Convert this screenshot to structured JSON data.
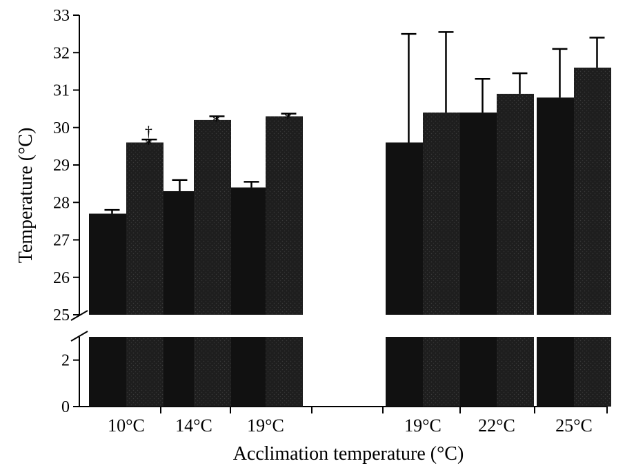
{
  "chart_data": {
    "type": "bar",
    "ylabel": "Temperature (°C)",
    "xlabel": "Acclimation temperature (°C)",
    "categories": [
      "10°C",
      "14°C",
      "19°C",
      "19°C",
      "22°C",
      "25°C"
    ],
    "series": [
      {
        "values": [
          27.7,
          28.3,
          28.4,
          29.6,
          30.4,
          30.8
        ],
        "errors": [
          0.1,
          0.3,
          0.15,
          2.9,
          0.9,
          1.3
        ],
        "color": "#111111"
      },
      {
        "values": [
          29.6,
          30.2,
          30.3,
          30.4,
          30.9,
          31.6
        ],
        "errors": [
          0.08,
          0.1,
          0.07,
          2.15,
          0.55,
          0.8
        ],
        "color": "#1c1c1c"
      }
    ],
    "markers": [
      {
        "category": 0,
        "series": 1,
        "symbols": [
          "*",
          "†"
        ]
      },
      {
        "category": 1,
        "series": 1,
        "symbols": [
          "*"
        ]
      },
      {
        "category": 2,
        "series": 1,
        "symbols": [
          "*"
        ]
      }
    ],
    "axis_break": {
      "lower_range": [
        0,
        3
      ],
      "upper_range": [
        25,
        33
      ]
    },
    "y_ticks_upper": [
      "25",
      "26",
      "27",
      "28",
      "29",
      "30",
      "31",
      "32",
      "33"
    ],
    "y_ticks_lower": [
      "0",
      "2"
    ],
    "grid": false,
    "legend": "none"
  }
}
